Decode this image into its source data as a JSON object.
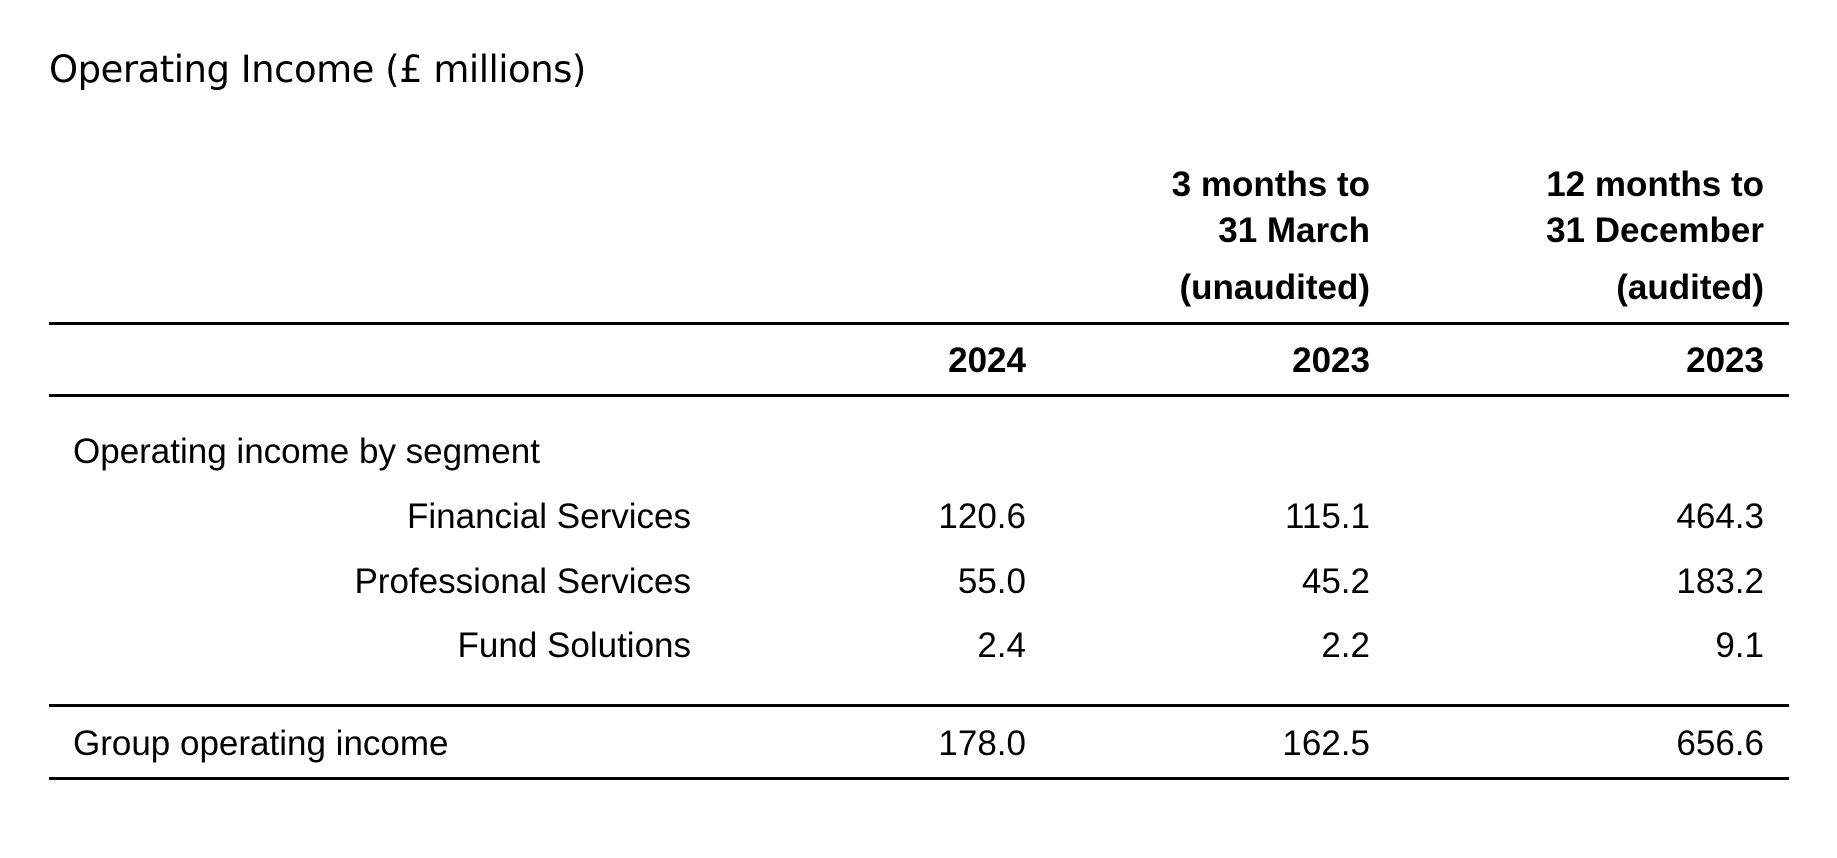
{
  "title": "Operating Income (£ millions)",
  "header": {
    "quarter_group": {
      "line1": "3 months to",
      "line2": "31 March",
      "line3": "(unaudited)"
    },
    "year_group": {
      "line1": "12 months to",
      "line2": "31 December",
      "line3": "(audited)"
    },
    "years": [
      "2024",
      "2023",
      "2023"
    ]
  },
  "section": {
    "label": "Operating income by segment",
    "rows": [
      {
        "label": "Financial Services",
        "values": [
          "120.6",
          "115.1",
          "464.3"
        ]
      },
      {
        "label": "Professional Services",
        "values": [
          "55.0",
          "45.2",
          "183.2"
        ]
      },
      {
        "label": "Fund Solutions",
        "values": [
          "2.4",
          "2.2",
          "9.1"
        ]
      }
    ]
  },
  "total": {
    "label": "Group operating income",
    "values": [
      "178.0",
      "162.5",
      "656.6"
    ]
  }
}
